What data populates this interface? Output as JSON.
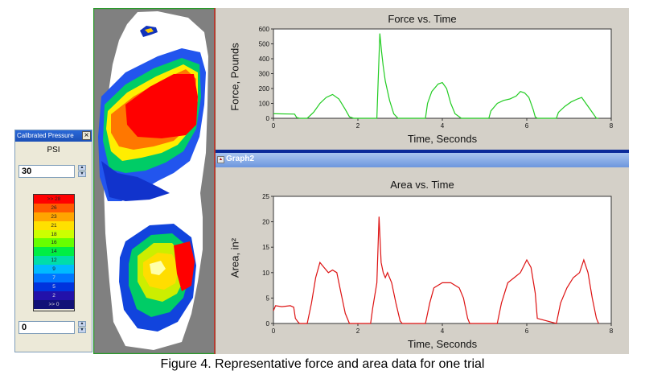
{
  "pressure_panel": {
    "title": "Calibrated Pressure",
    "unit": "PSI",
    "max_value": "30",
    "min_value": "0",
    "scale_labels": [
      ">> 28",
      "26",
      "23",
      "21",
      "18",
      "16",
      "14",
      "12",
      "9",
      "7",
      "5",
      "2",
      ">> 0"
    ],
    "scale_colors": [
      "#ff0000",
      "#ff5a00",
      "#ffa500",
      "#ffe000",
      "#ccff00",
      "#66ff00",
      "#00ee44",
      "#00ddaa",
      "#00bbff",
      "#0077ff",
      "#0033dd",
      "#2211aa",
      "#111177"
    ]
  },
  "graph2_bar": {
    "label": "Graph2"
  },
  "caption": "Figure 4. Representative force and area data for one trial",
  "chart_data": [
    {
      "type": "line",
      "title": "Force vs. Time",
      "xlabel": "Time, Seconds",
      "ylabel": "Force, Pounds",
      "xlim": [
        0,
        8
      ],
      "ylim": [
        0,
        600
      ],
      "xticks": [
        "0",
        "2",
        "4",
        "6",
        "8"
      ],
      "yticks": [
        "0",
        "100",
        "200",
        "300",
        "400",
        "500",
        "600"
      ],
      "grid": false,
      "series": [
        {
          "color": "#22cc22",
          "x": [
            0,
            0.05,
            0.5,
            0.55,
            0.62,
            0.8,
            0.95,
            1.1,
            1.25,
            1.4,
            1.55,
            1.7,
            1.8,
            1.9,
            2.45,
            2.48,
            2.52,
            2.56,
            2.6,
            2.65,
            2.75,
            2.85,
            2.95,
            3.05,
            3.1,
            3.15,
            3.6,
            3.65,
            3.75,
            3.9,
            4.0,
            4.1,
            4.2,
            4.3,
            4.45,
            4.55,
            4.6,
            4.65,
            5.1,
            5.15,
            5.3,
            5.45,
            5.6,
            5.75,
            5.85,
            5.95,
            6.05,
            6.15,
            6.2,
            6.25,
            6.7,
            6.75,
            6.9,
            7.05,
            7.2,
            7.3,
            7.4,
            7.5,
            7.6,
            7.65,
            7.7
          ],
          "y": [
            30,
            30,
            28,
            5,
            0,
            0,
            40,
            100,
            140,
            160,
            130,
            60,
            10,
            0,
            0,
            250,
            570,
            450,
            350,
            250,
            120,
            30,
            0,
            0,
            0,
            0,
            0,
            100,
            180,
            230,
            240,
            200,
            100,
            30,
            0,
            0,
            0,
            0,
            0,
            50,
            100,
            120,
            130,
            150,
            180,
            170,
            140,
            60,
            10,
            0,
            0,
            40,
            80,
            110,
            130,
            140,
            100,
            60,
            20,
            0,
            0
          ]
        }
      ]
    },
    {
      "type": "line",
      "title": "Area vs. Time",
      "xlabel": "Time, Seconds",
      "ylabel": "Area, in²",
      "xlim": [
        0,
        8
      ],
      "ylim": [
        0,
        25
      ],
      "xticks": [
        "0",
        "2",
        "4",
        "6",
        "8"
      ],
      "yticks": [
        "0",
        "5",
        "10",
        "15",
        "20",
        "25"
      ],
      "grid": false,
      "series": [
        {
          "color": "#dd1111",
          "x": [
            0,
            0.05,
            0.2,
            0.4,
            0.48,
            0.52,
            0.58,
            0.62,
            0.7,
            0.8,
            0.9,
            1.0,
            1.1,
            1.2,
            1.3,
            1.4,
            1.5,
            1.6,
            1.7,
            1.8,
            1.85,
            2.3,
            2.35,
            2.45,
            2.5,
            2.55,
            2.6,
            2.65,
            2.7,
            2.8,
            2.9,
            3.0,
            3.05,
            3.1,
            3.6,
            3.7,
            3.8,
            4.0,
            4.2,
            4.4,
            4.5,
            4.6,
            4.65,
            5.3,
            5.4,
            5.55,
            5.7,
            5.85,
            6.0,
            6.1,
            6.2,
            6.25,
            6.7,
            6.8,
            6.95,
            7.1,
            7.25,
            7.35,
            7.45,
            7.55,
            7.65,
            7.7
          ],
          "y": [
            2.5,
            3.5,
            3.3,
            3.5,
            3.2,
            1.0,
            0.3,
            0,
            0,
            0,
            4,
            9,
            12,
            11,
            10,
            10.5,
            10,
            6,
            2,
            0,
            0,
            0,
            3,
            8,
            21,
            12,
            10,
            9,
            10,
            8,
            4,
            0.5,
            0,
            0,
            0,
            4,
            7,
            8,
            8,
            7,
            5,
            1,
            0,
            0,
            4,
            8,
            9,
            10,
            12.5,
            11,
            6,
            1,
            0,
            4,
            7,
            9,
            10,
            12.5,
            10,
            5,
            1,
            0
          ]
        }
      ]
    }
  ]
}
